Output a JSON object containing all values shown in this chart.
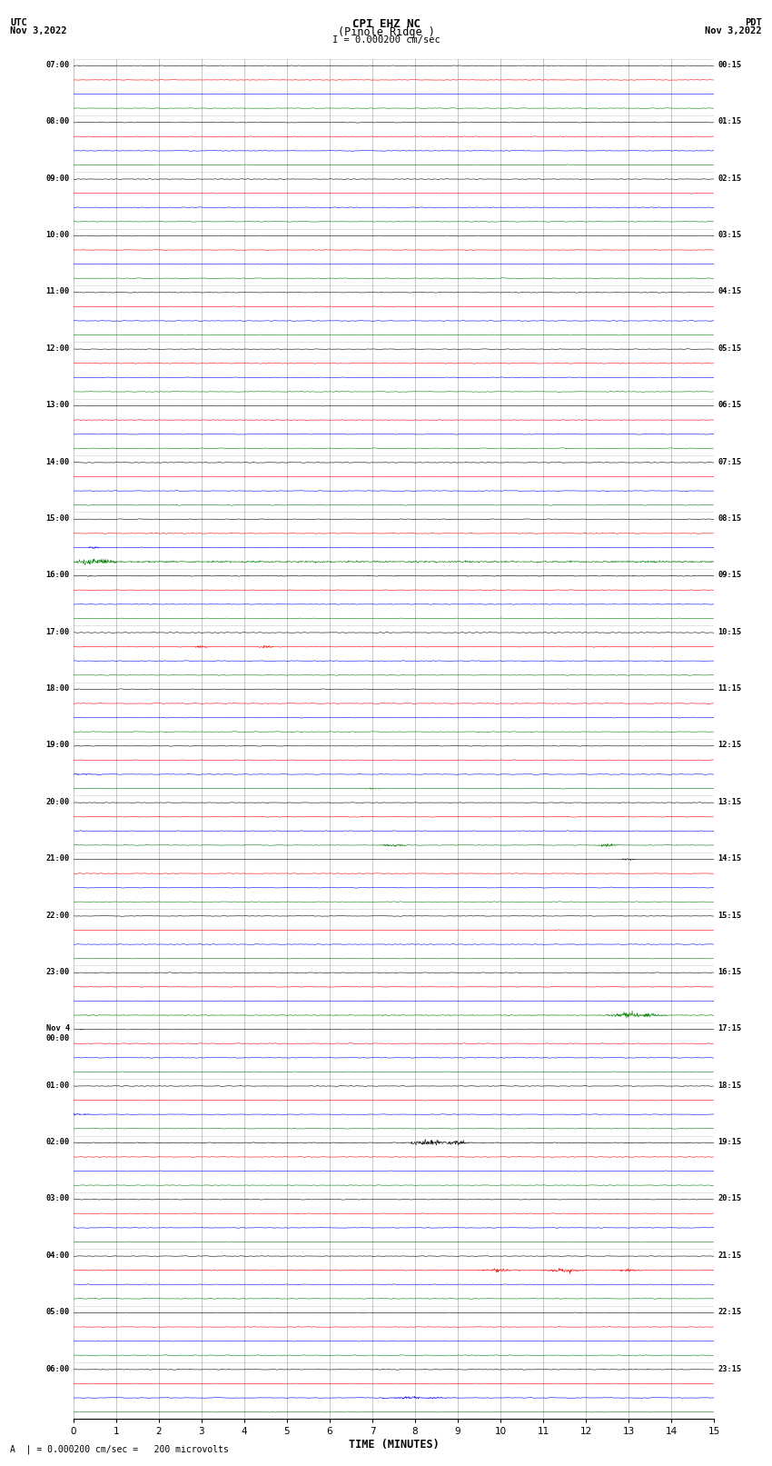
{
  "title_line1": "CPI EHZ NC",
  "title_line2": "(Pinole Ridge )",
  "scale_label": "I = 0.000200 cm/sec",
  "left_header": "UTC",
  "left_date": "Nov 3,2022",
  "right_header": "PDT",
  "right_date": "Nov 3,2022",
  "bottom_xlabel": "TIME (MINUTES)",
  "bottom_note": "A  | = 0.000200 cm/sec =   200 microvolts",
  "utc_times": [
    "07:00",
    "08:00",
    "09:00",
    "10:00",
    "11:00",
    "12:00",
    "13:00",
    "14:00",
    "15:00",
    "16:00",
    "17:00",
    "18:00",
    "19:00",
    "20:00",
    "21:00",
    "22:00",
    "23:00",
    "Nov 4\n00:00",
    "01:00",
    "02:00",
    "03:00",
    "04:00",
    "05:00",
    "06:00"
  ],
  "pdt_times": [
    "00:15",
    "01:15",
    "02:15",
    "03:15",
    "04:15",
    "05:15",
    "06:15",
    "07:15",
    "08:15",
    "09:15",
    "10:15",
    "11:15",
    "12:15",
    "13:15",
    "14:15",
    "15:15",
    "16:15",
    "17:15",
    "18:15",
    "19:15",
    "20:15",
    "21:15",
    "22:15",
    "23:15"
  ],
  "n_rows": 24,
  "n_traces_per_row": 4,
  "trace_colors": [
    "black",
    "red",
    "blue",
    "green"
  ],
  "x_min": 0,
  "x_max": 15,
  "x_ticks": [
    0,
    1,
    2,
    3,
    4,
    5,
    6,
    7,
    8,
    9,
    10,
    11,
    12,
    13,
    14,
    15
  ],
  "background_color": "white",
  "grid_color": "#999999"
}
